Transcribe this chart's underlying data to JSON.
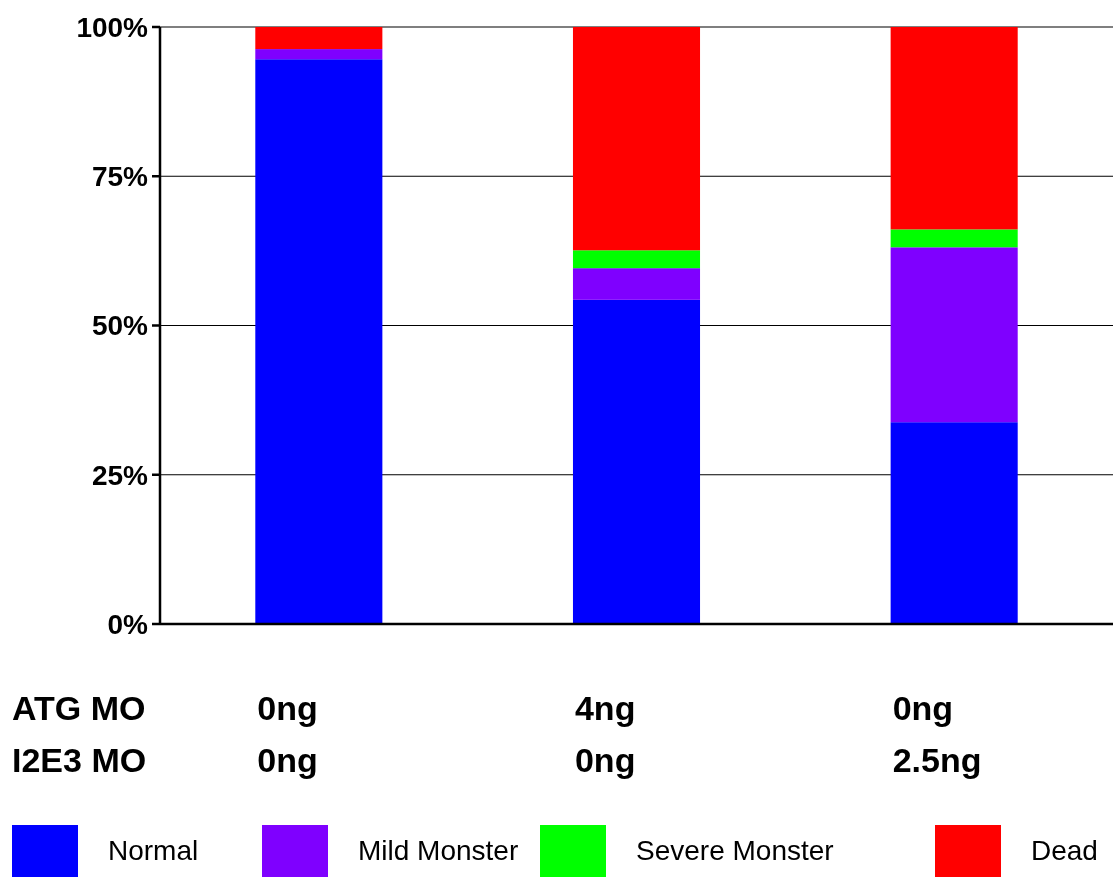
{
  "chart_data": {
    "type": "bar",
    "stacked": true,
    "categories": [
      "0ng\n0ng",
      "4ng\n0ng",
      "0ng\n2.5ng"
    ],
    "annotations": [
      "ATG MO",
      "I2E3 MO"
    ],
    "series": [
      {
        "name": "Normal",
        "color": "#0000ff",
        "values": [
          94.6,
          54.3,
          33.8
        ]
      },
      {
        "name": "Mild Monster",
        "color": "#7f00ff",
        "values": [
          1.7,
          5.3,
          29.3
        ]
      },
      {
        "name": "Severe Monster",
        "color": "#00ff00",
        "values": [
          0,
          3.0,
          3.0
        ]
      },
      {
        "name": "Dead",
        "color": "#ff0000",
        "values": [
          3.7,
          37.4,
          33.9
        ]
      }
    ],
    "ylim": [
      0,
      100
    ],
    "yticks": [
      {
        "value": 0,
        "label": "0%"
      },
      {
        "value": 25,
        "label": "25%"
      },
      {
        "value": 50,
        "label": "50%"
      },
      {
        "value": 75,
        "label": "75%"
      },
      {
        "value": 100,
        "label": "100%"
      }
    ],
    "grid": "y",
    "legend": "bottom"
  }
}
